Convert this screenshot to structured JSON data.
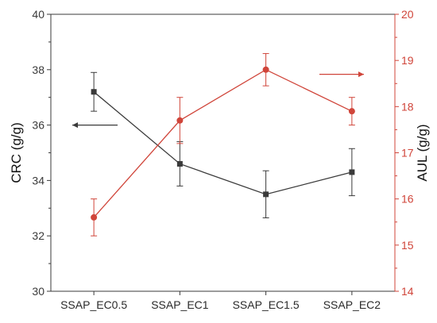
{
  "chart_data": {
    "type": "line",
    "categories": [
      "SSAP_EC0.5",
      "SSAP_EC1",
      "SSAP_EC1.5",
      "SSAP_EC2"
    ],
    "left_axis": {
      "label": "CRC (g/g)",
      "ylim": [
        30,
        40
      ],
      "ticks": [
        "30",
        "32",
        "34",
        "36",
        "38",
        "40"
      ],
      "color": "#3a3a3a"
    },
    "right_axis": {
      "label": "AUL (g/g)",
      "ylim": [
        14,
        20
      ],
      "ticks": [
        "14",
        "15",
        "16",
        "17",
        "18",
        "19",
        "20"
      ],
      "color": "#d0453a"
    },
    "series": [
      {
        "axis": "left",
        "color": "#3a3a3a",
        "marker": "square",
        "values": [
          37.2,
          34.6,
          33.5,
          34.3
        ],
        "errors": [
          0.7,
          0.8,
          0.85,
          0.85
        ]
      },
      {
        "axis": "right",
        "color": "#d0453a",
        "marker": "circle",
        "values": [
          15.6,
          17.7,
          18.8,
          17.9
        ],
        "errors": [
          0.4,
          0.5,
          0.35,
          0.3
        ]
      }
    ],
    "annotations": [
      {
        "type": "arrow",
        "direction": "left",
        "color": "#3a3a3a",
        "meaning": "CRC series uses left axis"
      },
      {
        "type": "arrow",
        "direction": "right",
        "color": "#d0453a",
        "meaning": "AUL series uses right axis"
      }
    ],
    "grid": false,
    "legend": "none"
  }
}
